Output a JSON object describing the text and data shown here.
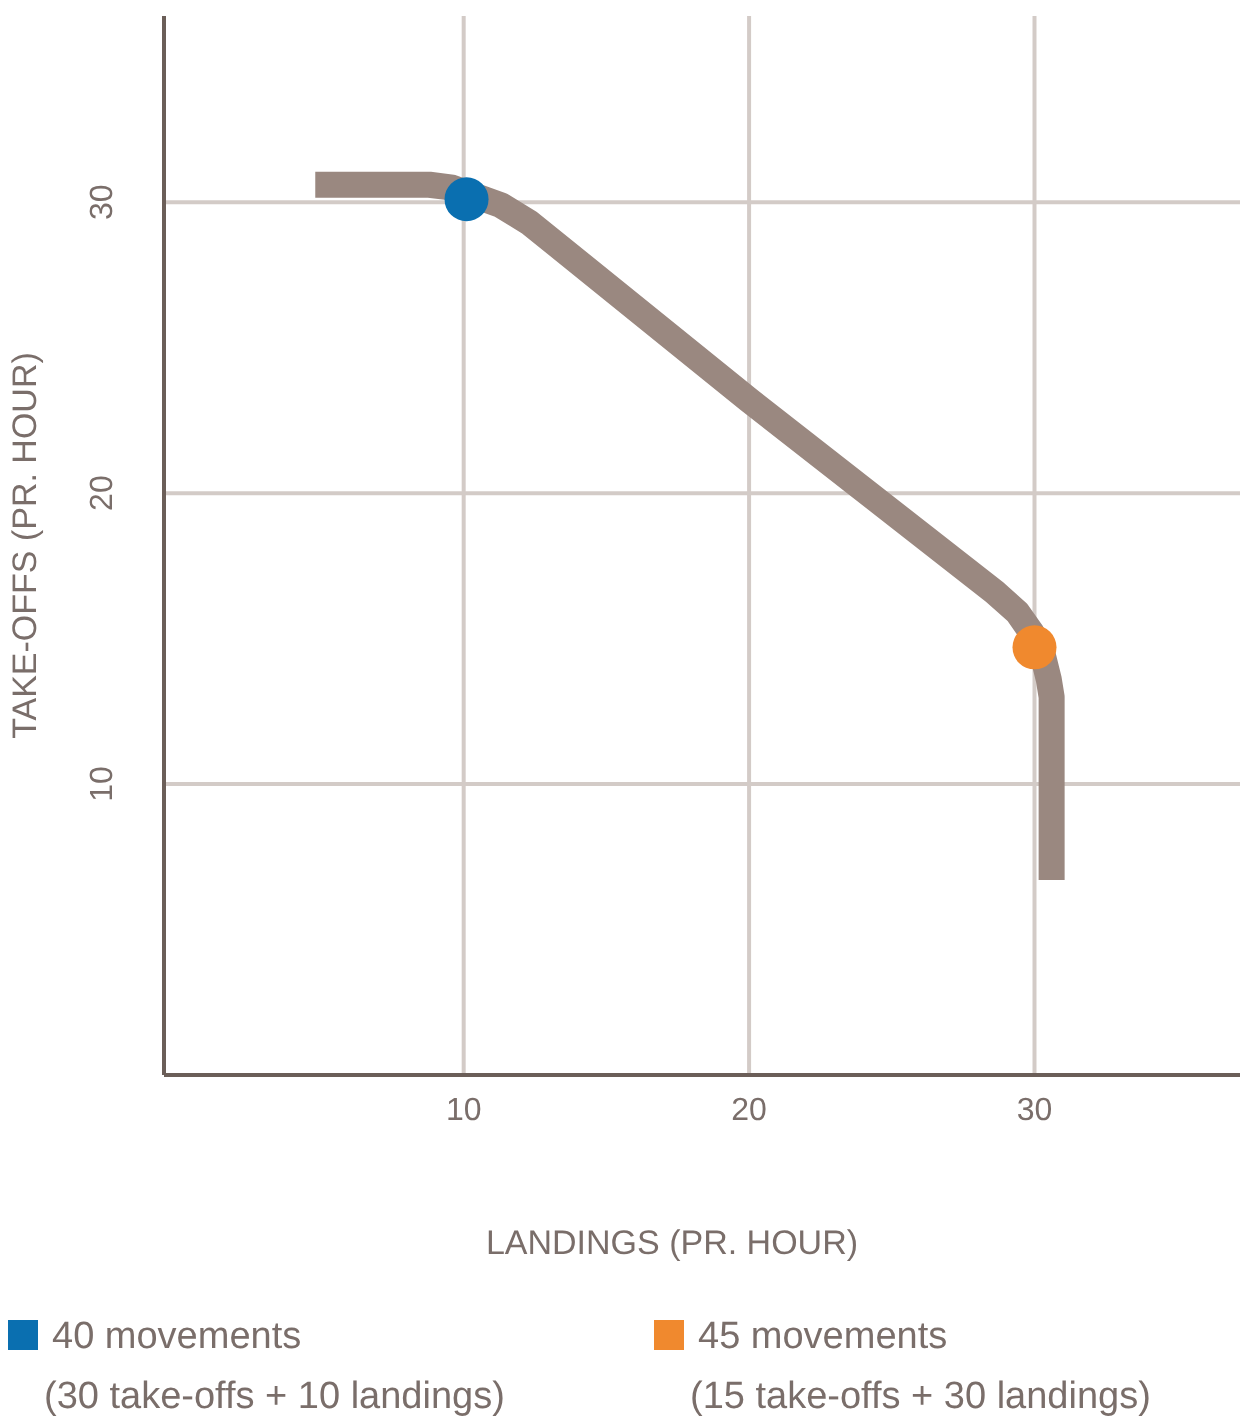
{
  "chart_data": {
    "type": "line",
    "xlabel": "LANDINGS (PR. HOUR)",
    "ylabel": "TAKE-OFFS (PR. HOUR)",
    "xlim": [
      -0.5,
      37.2
    ],
    "ylim": [
      0,
      36.4
    ],
    "xticks": [
      10,
      20,
      30
    ],
    "yticks": [
      10,
      20,
      30
    ],
    "grid": true,
    "legend": "bottom",
    "series": [
      {
        "color": "#9a8880",
        "marker": "none",
        "x": [
          4.8,
          8.8,
          9.6,
          11.3,
          12.3,
          20,
          28.6,
          29.4,
          29.9,
          30.3,
          30.5,
          30.6,
          30.6
        ],
        "values": [
          30.6,
          30.6,
          30.5,
          29.9,
          29.3,
          23.2,
          16.6,
          15.9,
          15.2,
          14.4,
          13.6,
          13,
          6.7
        ]
      },
      {
        "type": "scatter",
        "name": "40 movements\n(30 take-offs + 10 landings)",
        "color": "#0a6fb0",
        "marker": "circle",
        "x": [
          10.1
        ],
        "values": [
          30.1
        ]
      },
      {
        "type": "scatter",
        "name": "45 movements\n(15 take-offs + 30 landings)",
        "color": "#f0892e",
        "marker": "circle",
        "x": [
          30
        ],
        "values": [
          14.7
        ]
      }
    ]
  }
}
